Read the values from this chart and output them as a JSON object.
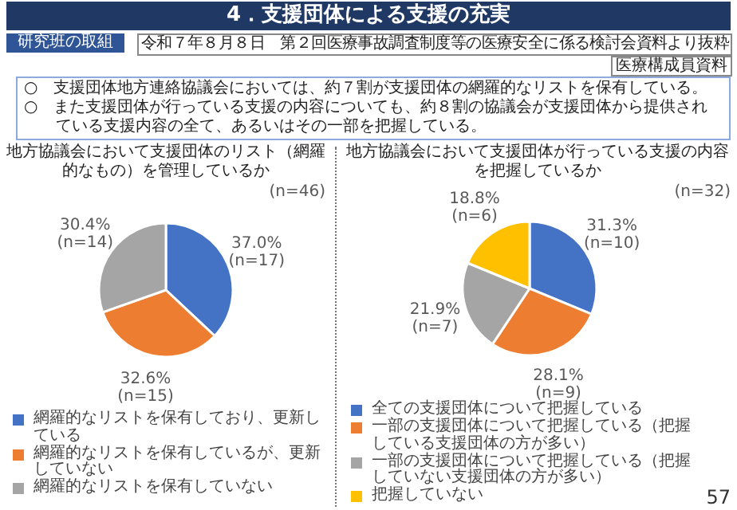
{
  "chart_data": [
    {
      "type": "pie",
      "title": "地方協議会において支援団体のリスト（網羅的なもの）を管理しているか",
      "categories": [
        "網羅的なリストを保有しており、更新している",
        "網羅的なリストを保有しているが、更新していない",
        "網羅的なリストを保有していない"
      ],
      "values": [
        37.0,
        32.6,
        30.4
      ],
      "colors": [
        "#4472c4",
        "#ed7d31",
        "#a5a5a5"
      ],
      "value_labels": [
        "37.0%\n(n=17)",
        "32.6%\n(n=15)",
        "30.4%\n(n=14)"
      ],
      "legend": "bottom",
      "annotations": [
        "4．支援団体による支援の充実",
        "研究班の取組",
        "令和７年８月８日　第２回医療事故調査制度等の医療安全に係る検討会資料より抜粋",
        "医療構成員資料",
        "○　支援団体地方連絡協議会においては、約７割が支援団体の網羅的なリストを保有している。",
        "○　また支援団体が行っている支援の内容についても、約８割の協議会が支援団体から提供されている支援内容の全て、あるいはその一部を把握している。",
        "(n=46)"
      ]
    },
    {
      "type": "pie",
      "title": "地方協議会において支援団体が行っている支援の内容を把握しているか",
      "categories": [
        "全ての支援団体について把握している",
        "一部の支援団体について把握している（把握している支援団体の方が多い）",
        "一部の支援団体について把握している（把握していない支援団体の方が多い）",
        "把握していない"
      ],
      "values": [
        31.3,
        28.1,
        21.9,
        18.8
      ],
      "colors": [
        "#4472c4",
        "#ed7d31",
        "#a5a5a5",
        "#ffc000"
      ],
      "value_labels": [
        "31.3%\n(n=10)",
        "28.1%\n(n=9)",
        "21.9%\n(n=7)",
        "18.8%\n(n=6)"
      ],
      "legend": "bottom",
      "annotations": [
        "(n=32)",
        "57"
      ]
    }
  ]
}
